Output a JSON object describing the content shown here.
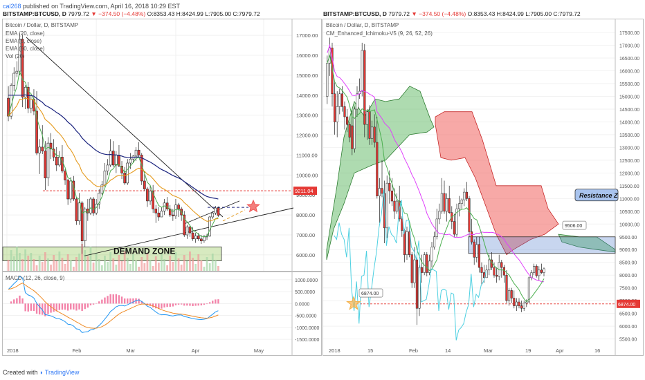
{
  "header": {
    "user": "cal268",
    "published_text": "published on TradingView.com, April 16, 2018 10:29 EST"
  },
  "left_symbol_bar": {
    "symbol": "BITSTAMP:BTCUSD, D",
    "last": "7979.72",
    "change": "▼ −374.50 (−4.48%)",
    "ohlc": "O:8353.43 H:8424.99 L:7905.00 C:7979.72"
  },
  "right_symbol_bar": {
    "symbol": "BITSTAMP:BTCUSD, D",
    "last": "7979.72",
    "change": "▼ −374.50 (−4.48%)",
    "ohlc": "O:8353.43 H:8424.99 L:7905.00 C:7979.72"
  },
  "left_panel": {
    "title": "Bitcoin / Dollar, D, BITSTAMP",
    "indicators": [
      "EMA (20, close)",
      "EMA (5, close)",
      "EMA (50, close)",
      "Vol (20)"
    ]
  },
  "right_panel": {
    "title": "Bitcoin / Dollar, D, BITSTAMP",
    "indicator": "CM_Enhanced_Ichimoku-V5 (9, 26, 52, 26)"
  },
  "macd_panel": {
    "title": "MACD (12, 26, close, 9)"
  },
  "colors": {
    "up": "#ffffff",
    "down": "#e53935",
    "ema20": "#e59a1c",
    "ema5": "#4caf50",
    "ema50": "#1a237e",
    "macd": "#2196f3",
    "signal": "#ef8a24",
    "hist": "#e91e63",
    "cloud_green": "#4caf50",
    "cloud_red": "#ef5350",
    "kijun": "#e040fb",
    "chikou": "#4dd0e1",
    "resistance_zone": "#4a77c9",
    "demand_zone": "#8bc34a",
    "star": "#ef5350",
    "star_gold": "#f5b14a"
  },
  "chart_data": [
    {
      "type": "candlestick",
      "panel": "left",
      "x_ticks": [
        "2018",
        "Feb",
        "Mar",
        "Apr",
        "May"
      ],
      "y_ticks": [
        "6000.00",
        "7000.00",
        "8000.00",
        "9000.00",
        "10000.00",
        "11000.00",
        "12000.00",
        "13000.00",
        "14000.00",
        "15000.00",
        "16000.00",
        "17000.00"
      ],
      "ylim": [
        5200,
        17800
      ],
      "ohlc": [
        [
          13850,
          14450,
          12700,
          12950
        ],
        [
          12950,
          14600,
          12800,
          14500
        ],
        [
          14500,
          15400,
          14200,
          15100
        ],
        [
          15100,
          15700,
          14900,
          15200
        ],
        [
          15200,
          17100,
          15000,
          16800
        ],
        [
          16800,
          17050,
          13400,
          13900
        ],
        [
          13900,
          14500,
          13300,
          14400
        ],
        [
          14400,
          14650,
          13100,
          13350
        ],
        [
          13350,
          14050,
          13100,
          13800
        ],
        [
          13800,
          14300,
          13000,
          13200
        ],
        [
          13200,
          14200,
          11000,
          11100
        ],
        [
          11100,
          11800,
          10050,
          11400
        ],
        [
          11400,
          12500,
          11050,
          11200
        ],
        [
          11200,
          11700,
          9250,
          9850
        ],
        [
          9850,
          11900,
          9450,
          11600
        ],
        [
          11600,
          12100,
          10800,
          11300
        ],
        [
          11300,
          11800,
          10700,
          10900
        ],
        [
          10900,
          11400,
          10200,
          10500
        ],
        [
          10500,
          11200,
          10400,
          10900
        ],
        [
          10900,
          11500,
          10100,
          10200
        ],
        [
          10200,
          10300,
          9500,
          9750
        ],
        [
          9750,
          9800,
          8500,
          8800
        ],
        [
          8800,
          9900,
          8600,
          9700
        ],
        [
          9700,
          9950,
          8700,
          8800
        ],
        [
          8800,
          8900,
          7500,
          7700
        ],
        [
          7700,
          9100,
          7500,
          8600
        ],
        [
          8600,
          8700,
          6050,
          6700
        ],
        [
          6700,
          8400,
          6400,
          8300
        ],
        [
          8300,
          8800,
          7700,
          8100
        ],
        [
          8100,
          8900,
          8000,
          8800
        ],
        [
          8800,
          8900,
          7950,
          8100
        ],
        [
          8100,
          8800,
          8000,
          8550
        ],
        [
          8550,
          9300,
          8300,
          9100
        ],
        [
          9100,
          9700,
          9000,
          9500
        ],
        [
          9500,
          10600,
          9400,
          10200
        ],
        [
          10200,
          10800,
          10000,
          10500
        ],
        [
          10500,
          11800,
          10400,
          11200
        ],
        [
          11200,
          11700,
          10400,
          10500
        ],
        [
          10500,
          11200,
          10100,
          11000
        ],
        [
          11000,
          11500,
          10400,
          10450
        ],
        [
          10450,
          10700,
          9800,
          10100
        ],
        [
          10100,
          10400,
          9500,
          9600
        ],
        [
          9600,
          10800,
          9500,
          10600
        ],
        [
          10600,
          11100,
          10300,
          10800
        ],
        [
          10800,
          11000,
          10600,
          10950
        ],
        [
          10950,
          11400,
          10700,
          11250
        ],
        [
          11250,
          11650,
          10900,
          11000
        ],
        [
          11000,
          11100,
          9500,
          9700
        ],
        [
          9700,
          10200,
          9200,
          9300
        ],
        [
          9300,
          9400,
          8400,
          8700
        ],
        [
          8700,
          9500,
          8500,
          9200
        ],
        [
          9200,
          9500,
          8100,
          8300
        ],
        [
          8300,
          8500,
          7600,
          8100
        ],
        [
          8100,
          8400,
          7700,
          7900
        ],
        [
          7900,
          8400,
          7900,
          8200
        ],
        [
          8200,
          8800,
          8000,
          8600
        ],
        [
          8600,
          8900,
          8200,
          8300
        ],
        [
          8300,
          8500,
          7900,
          8000
        ],
        [
          8000,
          8300,
          7700,
          7950
        ],
        [
          7950,
          8800,
          7800,
          8500
        ],
        [
          8500,
          8600,
          7900,
          8300
        ],
        [
          8300,
          8400,
          7700,
          8000
        ],
        [
          8000,
          8200,
          6900,
          7000
        ],
        [
          7000,
          7500,
          6800,
          7400
        ],
        [
          7400,
          7500,
          6900,
          7100
        ],
        [
          7100,
          7400,
          6700,
          6800
        ],
        [
          6800,
          7100,
          6600,
          6950
        ],
        [
          6950,
          7100,
          6700,
          6800
        ],
        [
          6800,
          7000,
          6550,
          6700
        ],
        [
          6700,
          7000,
          6600,
          6900
        ],
        [
          6900,
          7050,
          6750,
          6950
        ],
        [
          6950,
          7950,
          6900,
          7900
        ],
        [
          7900,
          8200,
          7800,
          8100
        ],
        [
          8100,
          8450,
          8000,
          8350
        ],
        [
          8353,
          8425,
          7905,
          7980
        ]
      ],
      "levels": {
        "resistance": 9211.04,
        "resistance_label": "9211.04"
      },
      "annotations": {
        "demand_zone": "DEMAND ZONE",
        "demand_range": [
          5700,
          6400
        ]
      }
    },
    {
      "type": "line",
      "panel": "left-macd",
      "title": "MACD (12, 26, close, 9)",
      "y_ticks": [
        "1000.0000",
        "500.0000",
        "0.0000",
        "-500.0000",
        "-1000.0000",
        "-1500.0000"
      ],
      "ylim": [
        -1700,
        1200
      ]
    },
    {
      "type": "ichimoku",
      "panel": "right",
      "x_ticks": [
        "2018",
        "15",
        "Feb",
        "14",
        "Mar",
        "19",
        "Apr",
        "16"
      ],
      "y_ticks": [
        "5500.00",
        "6000.00",
        "6500.00",
        "7000.00",
        "7500.00",
        "8000.00",
        "8500.00",
        "9000.00",
        "9500.00",
        "10000.00",
        "10500.00",
        "11000.00",
        "11500.00",
        "12000.00",
        "12500.00",
        "13000.00",
        "13500.00",
        "14000.00",
        "14500.00",
        "15000.00",
        "15500.00",
        "16000.00",
        "16500.00",
        "17000.00",
        "17500.00"
      ],
      "ylim": [
        5300,
        17800
      ],
      "annotations": {
        "resistance_zone": "Resistance Z",
        "resistance_zone_range": [
          8850,
          9500
        ],
        "callout_high": "9506.00",
        "callout_low": "6874.00",
        "price_tag": "6874.00",
        "support_level": 6874
      }
    }
  ]
}
